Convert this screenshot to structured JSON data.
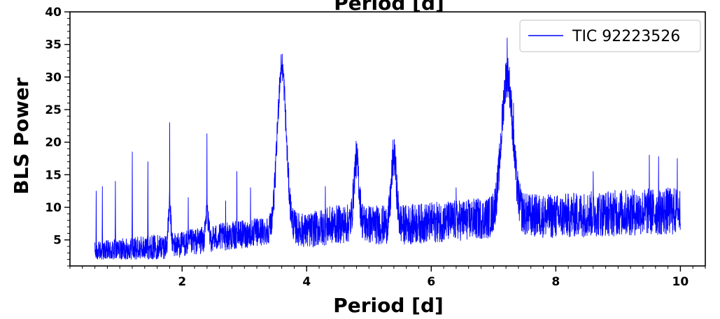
{
  "chart_data": {
    "type": "line",
    "title": "Period [d]",
    "xlabel": "Period [d]",
    "ylabel": "BLS Power",
    "xlim": [
      0.2,
      10.4
    ],
    "ylim": [
      1.0,
      40.0
    ],
    "xticks": [
      2,
      4,
      6,
      8,
      10
    ],
    "yticks": [
      5,
      10,
      15,
      20,
      25,
      30,
      35,
      40
    ],
    "x_minor_step": 0.2,
    "y_minor_step": 1,
    "grid": false,
    "legend_position": "top-right",
    "colors": {
      "series": "#0000ff"
    },
    "series": [
      {
        "name": "TIC 92223526",
        "x_range": [
          0.6,
          10.0
        ],
        "baseline": [
          [
            0.6,
            3.5
          ],
          [
            1.0,
            3.8
          ],
          [
            1.5,
            4.3
          ],
          [
            2.0,
            4.8
          ],
          [
            2.5,
            5.8
          ],
          [
            3.0,
            6.4
          ],
          [
            3.4,
            7.0
          ],
          [
            3.8,
            7.4
          ],
          [
            4.0,
            7.0
          ],
          [
            4.4,
            8.0
          ],
          [
            4.8,
            8.3
          ],
          [
            5.2,
            8.0
          ],
          [
            5.6,
            8.1
          ],
          [
            6.0,
            8.4
          ],
          [
            6.5,
            8.8
          ],
          [
            7.0,
            9.2
          ],
          [
            7.5,
            9.6
          ],
          [
            8.0,
            9.4
          ],
          [
            8.5,
            9.8
          ],
          [
            9.0,
            10.0
          ],
          [
            9.5,
            10.2
          ],
          [
            10.0,
            10.3
          ]
        ],
        "noise_band": [
          [
            0.6,
            3.4
          ],
          [
            1.5,
            3.8
          ],
          [
            2.5,
            4.2
          ],
          [
            3.5,
            4.5
          ],
          [
            4.3,
            5.8
          ],
          [
            5.0,
            6.0
          ],
          [
            6.0,
            6.2
          ],
          [
            7.0,
            6.4
          ],
          [
            7.5,
            6.6
          ],
          [
            8.5,
            7.0
          ],
          [
            10.0,
            7.4
          ]
        ],
        "peaks": [
          [
            0.62,
            12.5
          ],
          [
            0.72,
            13.2
          ],
          [
            0.93,
            14.0
          ],
          [
            1.2,
            18.5
          ],
          [
            1.45,
            17.0
          ],
          [
            1.8,
            23.0
          ],
          [
            2.1,
            11.5
          ],
          [
            2.4,
            21.3
          ],
          [
            2.7,
            11.0
          ],
          [
            2.88,
            15.5
          ],
          [
            3.1,
            13.0
          ],
          [
            3.6,
            31.8
          ],
          [
            4.3,
            13.2
          ],
          [
            4.8,
            18.4
          ],
          [
            5.4,
            17.0
          ],
          [
            6.4,
            13.0
          ],
          [
            7.1,
            19.0
          ],
          [
            7.22,
            36.0
          ],
          [
            7.32,
            26.0
          ],
          [
            8.6,
            15.5
          ],
          [
            9.5,
            18.0
          ],
          [
            9.65,
            17.8
          ],
          [
            9.95,
            17.5
          ]
        ],
        "broad_peaks": [
          [
            3.6,
            29.5,
            0.07
          ],
          [
            7.22,
            25.5,
            0.09
          ],
          [
            4.8,
            11.5,
            0.04
          ],
          [
            5.4,
            12.5,
            0.04
          ],
          [
            1.8,
            7.0,
            0.02
          ],
          [
            2.4,
            5.0,
            0.02
          ]
        ]
      }
    ]
  }
}
